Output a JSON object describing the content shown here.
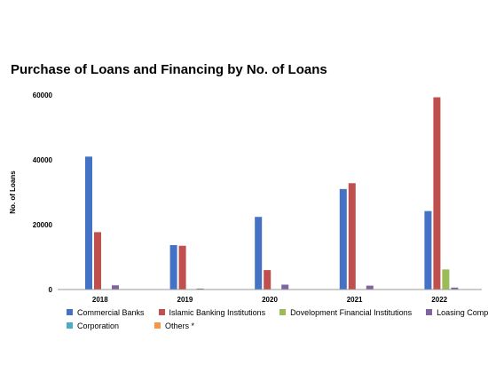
{
  "chart_data": {
    "type": "bar",
    "title": "Purchase of Loans and Financing by No. of Loans",
    "xlabel": "",
    "ylabel": "No. of Loans",
    "ylim": [
      0,
      60000
    ],
    "yticks": [
      0,
      20000,
      40000,
      60000
    ],
    "categories": [
      "2018",
      "2019",
      "2020",
      "2021",
      "2022"
    ],
    "grid": false,
    "legend_position": "bottom",
    "series": [
      {
        "name": "Commercial Banks",
        "color": "#4472c4",
        "values": [
          41000,
          13700,
          22400,
          31000,
          24200
        ]
      },
      {
        "name": "Islamic Banking Institutions",
        "color": "#c0504d",
        "values": [
          17700,
          13500,
          6000,
          32800,
          59300
        ]
      },
      {
        "name": "Dovelopment Financial Institutions",
        "color": "#9bbb59",
        "values": [
          0,
          0,
          0,
          0,
          6200
        ]
      },
      {
        "name": "Loasing Companios",
        "color": "#8064a2",
        "values": [
          1300,
          300,
          1500,
          1200,
          600
        ]
      },
      {
        "name": "Corporation",
        "color": "#4bacc6",
        "values": [
          0,
          0,
          0,
          0,
          0
        ]
      },
      {
        "name": "Others *",
        "color": "#f79646",
        "values": [
          0,
          0,
          0,
          0,
          0
        ]
      }
    ]
  }
}
